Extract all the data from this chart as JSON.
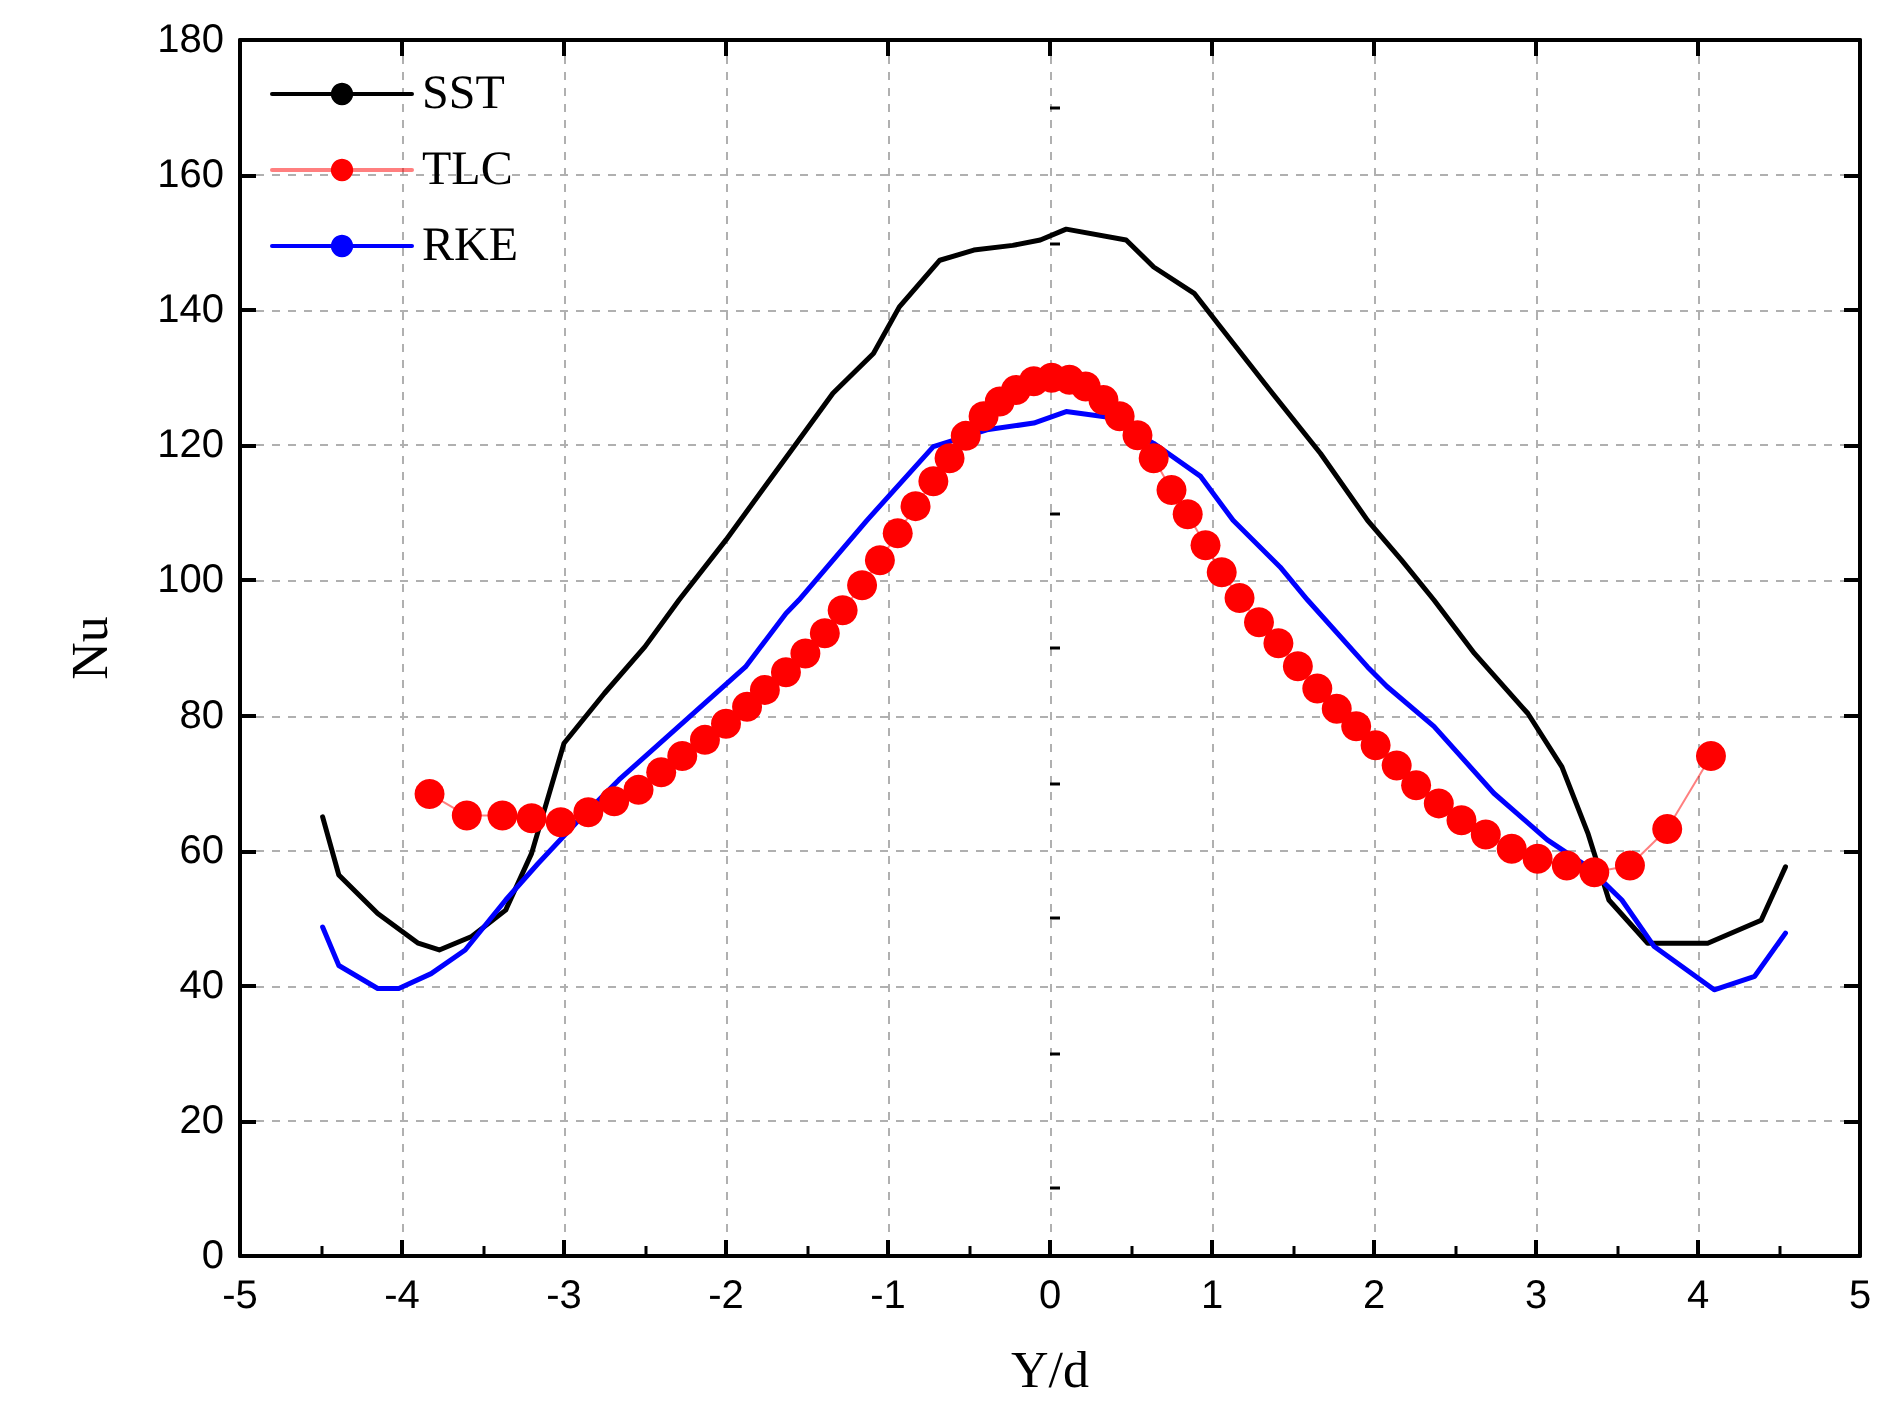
{
  "chart_data": {
    "type": "line",
    "xlabel": "Y/d",
    "ylabel": "Nu",
    "xlim": [
      -5,
      5
    ],
    "xticks": [
      -5,
      -4,
      -3,
      -2,
      -1,
      0,
      1,
      2,
      3,
      4,
      5
    ],
    "ylim": [
      0,
      180
    ],
    "yticks": [
      0,
      20,
      40,
      60,
      80,
      100,
      120,
      140,
      160,
      180
    ],
    "grid": true,
    "legend": "top left",
    "line_style": "solid",
    "series": [
      {
        "name": "SST",
        "color": "#000000",
        "marker": "none",
        "x": [
          -4.49,
          -4.39,
          -4.15,
          -3.9,
          -3.77,
          -3.57,
          -3.36,
          -3.2,
          -3.0,
          -2.75,
          -2.5,
          -2.29,
          -2.0,
          -1.55,
          -1.34,
          -1.09,
          -0.93,
          -0.68,
          -0.47,
          -0.23,
          -0.06,
          0.1,
          0.47,
          0.64,
          0.89,
          1.05,
          1.34,
          1.67,
          1.96,
          2.17,
          2.37,
          2.62,
          2.95,
          3.16,
          3.32,
          3.45,
          3.69,
          4.06,
          4.39,
          4.54
        ],
        "values": [
          65,
          56.4,
          50.7,
          46.3,
          45.3,
          47.3,
          51.2,
          59.6,
          75.9,
          83.3,
          90.2,
          97.1,
          106,
          120.8,
          127.7,
          133.6,
          140.5,
          147.4,
          148.9,
          149.6,
          150.4,
          152,
          150.4,
          146.4,
          142.5,
          137.6,
          128.7,
          118.8,
          108.9,
          103,
          97.1,
          89.2,
          80.3,
          72.4,
          62.6,
          52.7,
          46.3,
          46.3,
          49.7,
          57.6
        ]
      },
      {
        "name": "TLC",
        "color": "#ff0000",
        "marker": "circle",
        "x": [
          -3.83,
          -3.6,
          -3.38,
          -3.2,
          -3.02,
          -2.85,
          -2.69,
          -2.54,
          -2.4,
          -2.27,
          -2.13,
          -2.0,
          -1.87,
          -1.76,
          -1.63,
          -1.51,
          -1.39,
          -1.28,
          -1.16,
          -1.05,
          -0.94,
          -0.83,
          -0.72,
          -0.62,
          -0.52,
          -0.41,
          -0.31,
          -0.21,
          -0.1,
          0.01,
          0.12,
          0.22,
          0.33,
          0.43,
          0.54,
          0.64,
          0.75,
          0.85,
          0.96,
          1.06,
          1.17,
          1.29,
          1.41,
          1.53,
          1.65,
          1.77,
          1.89,
          2.01,
          2.14,
          2.26,
          2.4,
          2.54,
          2.69,
          2.85,
          3.01,
          3.19,
          3.36,
          3.58,
          3.81,
          4.08
        ],
        "values": [
          68.4,
          65.2,
          65.2,
          64.8,
          64.2,
          65.7,
          67.3,
          69,
          71.6,
          74,
          76.4,
          78.8,
          81.3,
          83.8,
          86.4,
          89.2,
          92.2,
          95.6,
          99.3,
          103,
          107,
          111,
          114.7,
          118.1,
          121.4,
          124.3,
          126.5,
          128.2,
          129.5,
          130,
          129.7,
          128.7,
          126.7,
          124.3,
          121.5,
          118.1,
          113.4,
          109.8,
          105.2,
          101.2,
          97.4,
          93.8,
          90.7,
          87.3,
          84,
          81,
          78.4,
          75.6,
          72.6,
          69.7,
          67,
          64.5,
          62.4,
          60.3,
          58.8,
          57.8,
          56.8,
          57.8,
          63.2,
          74
        ]
      },
      {
        "name": "RKE",
        "color": "#0000ff",
        "marker": "none",
        "x": [
          -4.49,
          -4.39,
          -4.15,
          -4.02,
          -3.82,
          -3.61,
          -3.36,
          -3.16,
          -2.91,
          -2.66,
          -2.25,
          -1.88,
          -1.63,
          -1.55,
          -1.13,
          -0.72,
          -0.39,
          -0.1,
          0.1,
          0.35,
          0.64,
          0.93,
          1.13,
          1.42,
          1.59,
          1.96,
          2.08,
          2.37,
          2.74,
          3.07,
          3.32,
          3.53,
          3.73,
          4.1,
          4.35,
          4.54
        ],
        "values": [
          48.7,
          43,
          39.6,
          39.6,
          41.8,
          45.3,
          52.7,
          58.1,
          64.5,
          70.5,
          79.3,
          87.2,
          95.1,
          97.1,
          108.9,
          119.8,
          122.3,
          123.3,
          125,
          124.2,
          120.3,
          115.4,
          108.9,
          102,
          97.1,
          87.2,
          84.3,
          78.4,
          68.5,
          61.6,
          57.6,
          52.7,
          45.8,
          39.4,
          41.4,
          47.8
        ]
      }
    ]
  }
}
